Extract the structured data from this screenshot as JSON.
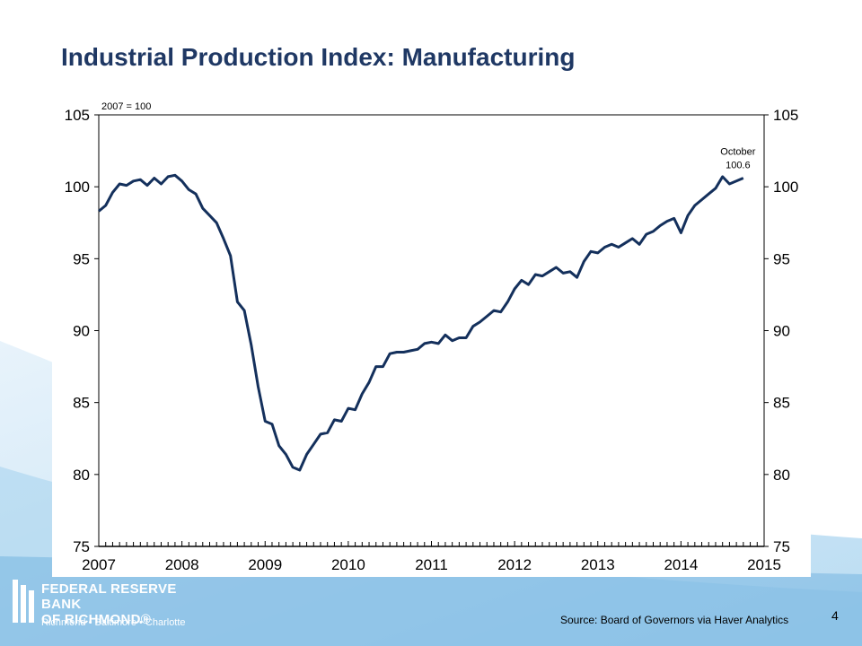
{
  "slide": {
    "title": "Industrial Production Index: Manufacturing",
    "source": "Source: Board of Governors via Haver Analytics",
    "page_number": "4"
  },
  "logo": {
    "line1": "FEDERAL RESERVE BANK",
    "line2": "OF RICHMOND®",
    "cities": "Richmond • Baltimore • Charlotte"
  },
  "colors": {
    "title": "#1f3864",
    "series_line": "#14305c",
    "background_wave": "#cfe6f5",
    "logo_band": "#1a6fb0"
  },
  "chart_data": {
    "type": "line",
    "title": "",
    "xlabel": "",
    "ylabel": "",
    "unit_note": "2007 = 100",
    "xlim": [
      2007,
      2015
    ],
    "ylim": [
      75,
      105
    ],
    "x_ticks": [
      "2007",
      "2008",
      "2009",
      "2010",
      "2011",
      "2012",
      "2013",
      "2014",
      "2015"
    ],
    "y_ticks": [
      "75",
      "80",
      "85",
      "90",
      "95",
      "100",
      "105"
    ],
    "dual_y_axis": true,
    "grid": false,
    "annotation": {
      "line1": "October",
      "line2": "100.6"
    },
    "series": [
      {
        "name": "",
        "start": "2007-01",
        "frequency": "monthly",
        "values": [
          98.3,
          98.7,
          99.6,
          100.2,
          100.1,
          100.4,
          100.5,
          100.1,
          100.6,
          100.2,
          100.7,
          100.8,
          100.4,
          99.8,
          99.5,
          98.5,
          98.0,
          97.5,
          96.4,
          95.2,
          92.0,
          91.4,
          89.0,
          86.1,
          83.7,
          83.5,
          82.0,
          81.4,
          80.5,
          80.3,
          81.4,
          82.1,
          82.8,
          82.9,
          83.8,
          83.7,
          84.6,
          84.5,
          85.6,
          86.4,
          87.5,
          87.5,
          88.4,
          88.5,
          88.5,
          88.6,
          88.7,
          89.1,
          89.2,
          89.1,
          89.7,
          89.3,
          89.5,
          89.5,
          90.3,
          90.6,
          91.0,
          91.4,
          91.3,
          92.0,
          92.9,
          93.5,
          93.2,
          93.9,
          93.8,
          94.1,
          94.4,
          94.0,
          94.1,
          93.7,
          94.8,
          95.5,
          95.4,
          95.8,
          96.0,
          95.8,
          96.1,
          96.4,
          96.0,
          96.7,
          96.9,
          97.3,
          97.6,
          97.8,
          96.8,
          98.0,
          98.7,
          99.1,
          99.5,
          99.9,
          100.7,
          100.2,
          100.4,
          100.6
        ]
      }
    ]
  }
}
